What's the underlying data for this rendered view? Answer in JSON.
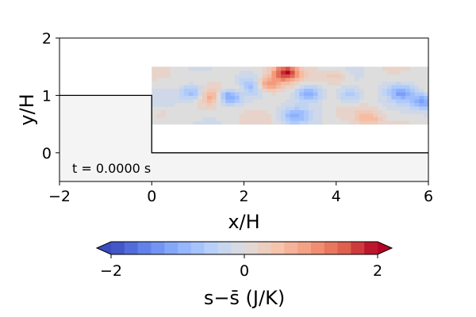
{
  "chart_data": {
    "type": "heatmap",
    "title": "",
    "xlabel": "x/H",
    "ylabel": "y/H",
    "xlim": [
      -2,
      6
    ],
    "ylim": [
      -0.5,
      2
    ],
    "xticks": [
      -2,
      0,
      2,
      4,
      6
    ],
    "xtick_labels": [
      "−2",
      "0",
      "2",
      "4",
      "6"
    ],
    "yticks": [
      0,
      1,
      2
    ],
    "ytick_labels": [
      "0",
      "1",
      "2"
    ],
    "annotation": "t = 0.0000 s",
    "geometry_outline": {
      "step_top_y": 1,
      "step_face_x": 0,
      "lower_wall_y": 0,
      "field_x_range": [
        0,
        6
      ],
      "field_y_range": [
        0.5,
        1.5
      ]
    },
    "colorbar": {
      "label": "s−s̄ (J/K)",
      "range": [
        -2,
        2
      ],
      "ticks": [
        -2,
        0,
        2
      ],
      "tick_labels": [
        "−2",
        "0",
        "2"
      ],
      "colormap": "coolwarm",
      "levels": 20,
      "extend": "both"
    },
    "field_features": [
      {
        "x": 2.9,
        "y": 1.4,
        "value": 1.8
      },
      {
        "x": 2.5,
        "y": 1.2,
        "value": 1.1
      },
      {
        "x": 1.9,
        "y": 1.1,
        "value": 1.2
      },
      {
        "x": 1.7,
        "y": 1.0,
        "value": -1.6
      },
      {
        "x": 2.1,
        "y": 1.15,
        "value": -1.2
      },
      {
        "x": 0.9,
        "y": 1.05,
        "value": -1.0
      },
      {
        "x": 1.3,
        "y": 1.0,
        "value": 0.8
      },
      {
        "x": 3.4,
        "y": 1.05,
        "value": -1.1
      },
      {
        "x": 3.1,
        "y": 0.65,
        "value": -0.8
      },
      {
        "x": 4.3,
        "y": 1.0,
        "value": -0.7
      },
      {
        "x": 5.4,
        "y": 1.05,
        "value": -0.9
      },
      {
        "x": 5.9,
        "y": 0.9,
        "value": -1.1
      },
      {
        "x": 4.0,
        "y": 1.35,
        "value": 0.5
      },
      {
        "x": 4.7,
        "y": 0.6,
        "value": 0.6
      },
      {
        "x": 0.2,
        "y": 0.7,
        "value": 0.3
      }
    ]
  }
}
